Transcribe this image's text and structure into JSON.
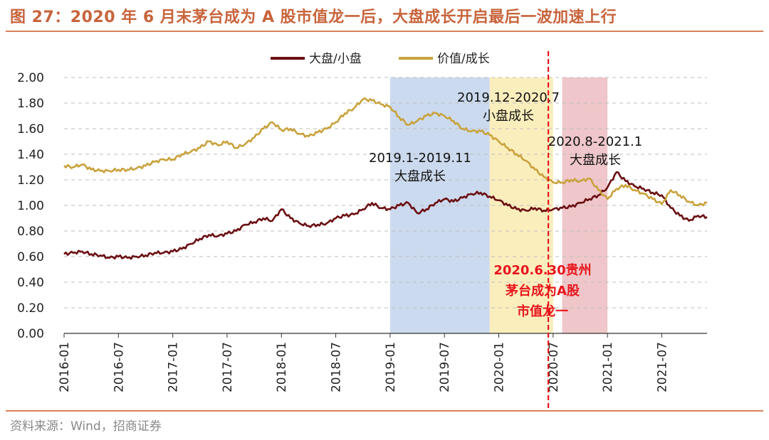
{
  "title": "图 27：2020 年 6 月末茅台成为 A 股市值龙一后，大盘成长开启最后一波加速上行",
  "source": "资料来源：Wind，招商证券",
  "chart_data": {
    "type": "line",
    "ylim": [
      0,
      2.0
    ],
    "yticks": [
      "0.00",
      "0.20",
      "0.40",
      "0.60",
      "0.80",
      "1.00",
      "1.20",
      "1.40",
      "1.60",
      "1.80",
      "2.00"
    ],
    "xlim": [
      "2016-01",
      "2021-12"
    ],
    "xticks": [
      "2016-01",
      "2016-07",
      "2017-01",
      "2017-07",
      "2018-01",
      "2018-07",
      "2019-01",
      "2019-07",
      "2020-01",
      "2020-07",
      "2021-01",
      "2021-07"
    ],
    "legend": [
      "大盘/小盘",
      "价值/成长"
    ],
    "colors": {
      "large_small": "#6b0f12",
      "value_growth": "#c9a23c",
      "band1": "#c9d8ee",
      "band2": "#fbedb9",
      "band3": "#eec3c6",
      "marker": "#e8141b"
    },
    "series": [
      {
        "name": "大盘/小盘",
        "x": [
          "2016-01",
          "2016-02",
          "2016-03",
          "2016-04",
          "2016-05",
          "2016-06",
          "2016-07",
          "2016-08",
          "2016-09",
          "2016-10",
          "2016-11",
          "2016-12",
          "2017-01",
          "2017-02",
          "2017-03",
          "2017-04",
          "2017-05",
          "2017-06",
          "2017-07",
          "2017-08",
          "2017-09",
          "2017-10",
          "2017-11",
          "2017-12",
          "2018-01",
          "2018-02",
          "2018-03",
          "2018-04",
          "2018-05",
          "2018-06",
          "2018-07",
          "2018-08",
          "2018-09",
          "2018-10",
          "2018-11",
          "2018-12",
          "2019-01",
          "2019-02",
          "2019-03",
          "2019-04",
          "2019-05",
          "2019-06",
          "2019-07",
          "2019-08",
          "2019-09",
          "2019-10",
          "2019-11",
          "2019-12",
          "2020-01",
          "2020-02",
          "2020-03",
          "2020-04",
          "2020-05",
          "2020-06",
          "2020-07",
          "2020-08",
          "2020-09",
          "2020-10",
          "2020-11",
          "2020-12",
          "2021-01",
          "2021-02",
          "2021-03",
          "2021-04",
          "2021-05",
          "2021-06",
          "2021-07",
          "2021-08",
          "2021-09",
          "2021-10",
          "2021-11",
          "2021-12"
        ],
        "values": [
          0.62,
          0.63,
          0.64,
          0.62,
          0.61,
          0.59,
          0.6,
          0.59,
          0.6,
          0.61,
          0.63,
          0.63,
          0.64,
          0.66,
          0.7,
          0.74,
          0.77,
          0.76,
          0.78,
          0.8,
          0.85,
          0.87,
          0.9,
          0.88,
          0.97,
          0.9,
          0.86,
          0.84,
          0.85,
          0.86,
          0.9,
          0.92,
          0.93,
          0.97,
          1.02,
          0.98,
          0.97,
          1.0,
          1.02,
          0.94,
          0.97,
          1.02,
          1.05,
          1.03,
          1.06,
          1.09,
          1.1,
          1.07,
          1.04,
          1.0,
          0.97,
          0.96,
          0.98,
          0.96,
          0.97,
          0.98,
          0.99,
          1.02,
          1.05,
          1.08,
          1.14,
          1.26,
          1.19,
          1.15,
          1.13,
          1.1,
          1.08,
          0.98,
          0.92,
          0.88,
          0.92,
          0.91
        ]
      },
      {
        "name": "价值/成长",
        "x": [
          "2016-01",
          "2016-02",
          "2016-03",
          "2016-04",
          "2016-05",
          "2016-06",
          "2016-07",
          "2016-08",
          "2016-09",
          "2016-10",
          "2016-11",
          "2016-12",
          "2017-01",
          "2017-02",
          "2017-03",
          "2017-04",
          "2017-05",
          "2017-06",
          "2017-07",
          "2017-08",
          "2017-09",
          "2017-10",
          "2017-11",
          "2017-12",
          "2018-01",
          "2018-02",
          "2018-03",
          "2018-04",
          "2018-05",
          "2018-06",
          "2018-07",
          "2018-08",
          "2018-09",
          "2018-10",
          "2018-11",
          "2018-12",
          "2019-01",
          "2019-02",
          "2019-03",
          "2019-04",
          "2019-05",
          "2019-06",
          "2019-07",
          "2019-08",
          "2019-09",
          "2019-10",
          "2019-11",
          "2019-12",
          "2020-01",
          "2020-02",
          "2020-03",
          "2020-04",
          "2020-05",
          "2020-06",
          "2020-07",
          "2020-08",
          "2020-09",
          "2020-10",
          "2020-11",
          "2020-12",
          "2021-01",
          "2021-02",
          "2021-03",
          "2021-04",
          "2021-05",
          "2021-06",
          "2021-07",
          "2021-08",
          "2021-09",
          "2021-10",
          "2021-11",
          "2021-12"
        ],
        "values": [
          1.31,
          1.3,
          1.32,
          1.28,
          1.27,
          1.27,
          1.28,
          1.28,
          1.29,
          1.31,
          1.34,
          1.36,
          1.36,
          1.4,
          1.42,
          1.45,
          1.5,
          1.47,
          1.5,
          1.45,
          1.48,
          1.53,
          1.6,
          1.65,
          1.59,
          1.6,
          1.56,
          1.54,
          1.57,
          1.6,
          1.65,
          1.72,
          1.76,
          1.83,
          1.82,
          1.79,
          1.77,
          1.69,
          1.63,
          1.66,
          1.7,
          1.72,
          1.7,
          1.66,
          1.6,
          1.58,
          1.58,
          1.55,
          1.5,
          1.45,
          1.4,
          1.35,
          1.28,
          1.22,
          1.18,
          1.18,
          1.2,
          1.19,
          1.21,
          1.12,
          1.05,
          1.13,
          1.16,
          1.12,
          1.09,
          1.05,
          1.01,
          1.12,
          1.08,
          1.03,
          1.0,
          1.02
        ]
      }
    ],
    "bands": [
      {
        "from": "2019-01",
        "to": "2019-12",
        "label_lines": [
          "2019.1-2019.11",
          "大盘成长"
        ]
      },
      {
        "from": "2019-12",
        "to": "2020-07",
        "label_lines": [
          "2019.12-2020.7",
          "小盘成长"
        ]
      },
      {
        "from": "2020-08",
        "to": "2021-01",
        "label_lines": [
          "2020.8-2021.1",
          "大盘成长"
        ]
      }
    ],
    "marker": {
      "at": "2020-06",
      "label_lines": [
        "2020.6.30贵州",
        "茅台成为A股",
        "市值龙一"
      ]
    }
  }
}
